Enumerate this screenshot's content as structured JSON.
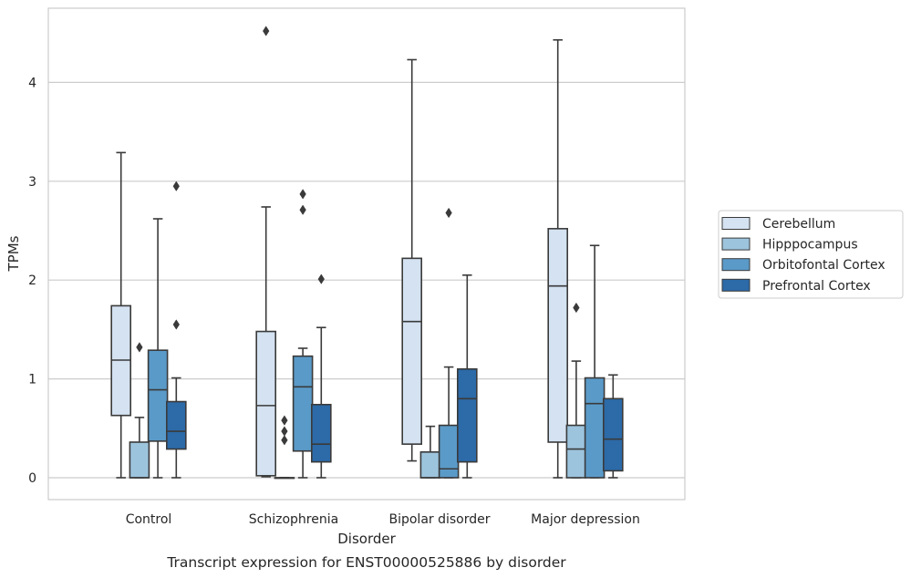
{
  "chart_data": {
    "type": "box",
    "caption": "Transcript expression for ENST00000525886 by disorder",
    "xlabel": "Disorder",
    "ylabel": "TPMs",
    "ylim": [
      -0.22,
      4.75
    ],
    "yticks": [
      "0",
      "1",
      "2",
      "3",
      "4"
    ],
    "ytick_values": [
      0,
      1,
      2,
      3,
      4
    ],
    "grid": true,
    "legend_position": "right",
    "categories": [
      "Control",
      "Schizophrenia",
      "Bipolar disorder",
      "Major depression"
    ],
    "series": [
      {
        "name": "Cerebellum",
        "color": "#d4e2f1",
        "boxes": [
          {
            "min": 0.0,
            "q1": 0.63,
            "median": 1.19,
            "q3": 1.74,
            "max": 3.29,
            "outliers": []
          },
          {
            "min": 0.01,
            "q1": 0.02,
            "median": 0.73,
            "q3": 1.48,
            "max": 2.74,
            "outliers": [
              4.52
            ]
          },
          {
            "min": 0.17,
            "q1": 0.34,
            "median": 1.58,
            "q3": 2.22,
            "max": 4.23,
            "outliers": []
          },
          {
            "min": 0.0,
            "q1": 0.36,
            "median": 1.94,
            "q3": 2.52,
            "max": 4.43,
            "outliers": []
          }
        ]
      },
      {
        "name": "Hipppocampus",
        "color": "#9dc4dd",
        "boxes": [
          {
            "min": 0.0,
            "q1": 0.0,
            "median": 0.0,
            "q3": 0.36,
            "max": 0.61,
            "outliers": [
              1.32
            ]
          },
          {
            "min": 0.0,
            "q1": 0.0,
            "median": 0.0,
            "q3": 0.0,
            "max": 0.0,
            "outliers": [
              0.38,
              0.47,
              0.58
            ]
          },
          {
            "min": 0.0,
            "q1": 0.0,
            "median": 0.0,
            "q3": 0.26,
            "max": 0.52,
            "outliers": []
          },
          {
            "min": 0.0,
            "q1": 0.0,
            "median": 0.29,
            "q3": 0.53,
            "max": 1.18,
            "outliers": [
              1.72
            ]
          }
        ]
      },
      {
        "name": "Orbitofontal Cortex",
        "color": "#5a9ac8",
        "boxes": [
          {
            "min": 0.0,
            "q1": 0.37,
            "median": 0.89,
            "q3": 1.29,
            "max": 2.62,
            "outliers": []
          },
          {
            "min": 0.0,
            "q1": 0.27,
            "median": 0.92,
            "q3": 1.23,
            "max": 1.31,
            "outliers": [
              2.71,
              2.87
            ]
          },
          {
            "min": 0.0,
            "q1": 0.0,
            "median": 0.09,
            "q3": 0.53,
            "max": 1.12,
            "outliers": [
              2.68
            ]
          },
          {
            "min": 0.0,
            "q1": 0.0,
            "median": 0.75,
            "q3": 1.01,
            "max": 2.35,
            "outliers": []
          }
        ]
      },
      {
        "name": "Prefrontal Cortex",
        "color": "#2c6aa8",
        "boxes": [
          {
            "min": 0.0,
            "q1": 0.29,
            "median": 0.47,
            "q3": 0.77,
            "max": 1.01,
            "outliers": [
              1.55,
              2.95
            ]
          },
          {
            "min": 0.0,
            "q1": 0.16,
            "median": 0.34,
            "q3": 0.74,
            "max": 1.52,
            "outliers": [
              2.01
            ]
          },
          {
            "min": 0.0,
            "q1": 0.16,
            "median": 0.8,
            "q3": 1.1,
            "max": 2.05,
            "outliers": []
          },
          {
            "min": 0.0,
            "q1": 0.07,
            "median": 0.39,
            "q3": 0.8,
            "max": 1.04,
            "outliers": []
          }
        ]
      }
    ]
  }
}
